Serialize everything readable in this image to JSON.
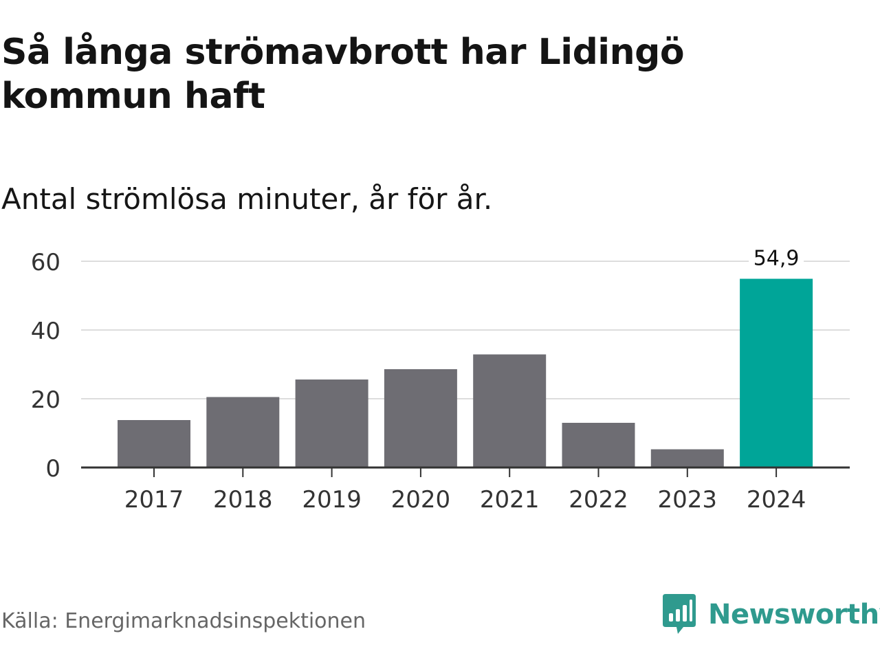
{
  "header": {
    "title": "Så långa strömavbrott har Lidingö kommun haft",
    "subtitle": "Antal strömlösa minuter, år för år."
  },
  "footer": {
    "source": "Källa: Energimarknadsinspektionen",
    "brand": "Newsworthy"
  },
  "colors": {
    "bar": "#6e6d73",
    "highlight": "#00a598",
    "grid": "#dddddd",
    "axis": "#333333",
    "brand": "#2f9a8e"
  },
  "chart_data": {
    "type": "bar",
    "title": "Så långa strömavbrott har Lidingö kommun haft",
    "subtitle": "Antal strömlösa minuter, år för år.",
    "categories": [
      "2017",
      "2018",
      "2019",
      "2020",
      "2021",
      "2022",
      "2023",
      "2024"
    ],
    "values": [
      13.8,
      20.5,
      25.6,
      28.6,
      32.9,
      13.0,
      5.3,
      54.9
    ],
    "highlight_index": 7,
    "data_labels": [
      {
        "index": 7,
        "text": "54,9"
      }
    ],
    "ylim": [
      0,
      60
    ],
    "yticks": [
      0,
      20,
      40,
      60
    ],
    "xlabel": "",
    "ylabel": "",
    "grid": true,
    "legend": "none"
  }
}
